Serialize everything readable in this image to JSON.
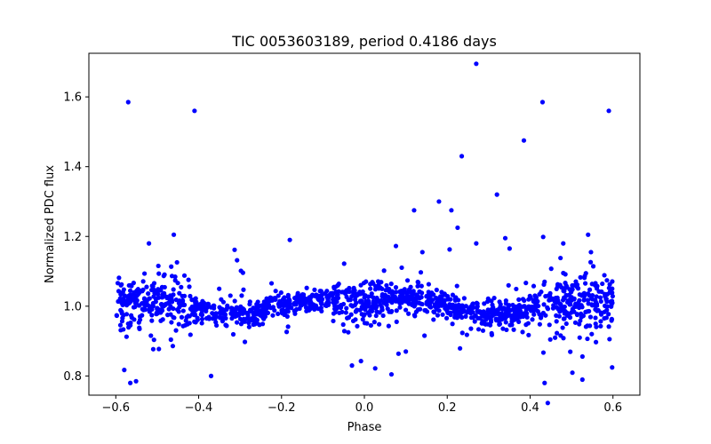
{
  "chart_data": {
    "type": "scatter",
    "title": "TIC 0053603189, period 0.4186 days",
    "xlabel": "Phase",
    "ylabel": "Normalized PDC flux",
    "xlim": [
      -0.665,
      0.665
    ],
    "ylim": [
      0.745,
      1.725
    ],
    "x_ticks": [
      -0.6,
      -0.4,
      -0.2,
      0.0,
      0.2,
      0.4,
      0.6
    ],
    "x_tick_labels": [
      "−0.6",
      "−0.4",
      "−0.2",
      "0.0",
      "0.2",
      "0.4",
      "0.6"
    ],
    "y_ticks": [
      0.8,
      1.0,
      1.2,
      1.4,
      1.6
    ],
    "y_tick_labels": [
      "0.8",
      "1.0",
      "1.2",
      "1.4",
      "1.6"
    ],
    "grid": false,
    "marker_color": "#0000ff",
    "phase_range": [
      -0.6,
      0.6
    ],
    "outliers": {
      "x": [
        -0.57,
        -0.41,
        0.27,
        0.43,
        0.59,
        0.385,
        0.235,
        0.32,
        -0.46,
        -0.52,
        0.54,
        0.48,
        0.12,
        0.18,
        0.21,
        0.225,
        0.27,
        0.34,
        0.14,
        -0.18,
        -0.37,
        -0.565,
        0.435,
        0.1,
        -0.03
      ],
      "y": [
        1.585,
        1.56,
        1.695,
        1.585,
        1.56,
        1.475,
        1.43,
        1.32,
        1.205,
        1.18,
        1.205,
        1.18,
        1.275,
        1.3,
        1.275,
        1.225,
        1.18,
        1.195,
        1.155,
        1.19,
        0.8,
        0.78,
        0.78,
        0.87,
        0.83
      ]
    }
  }
}
